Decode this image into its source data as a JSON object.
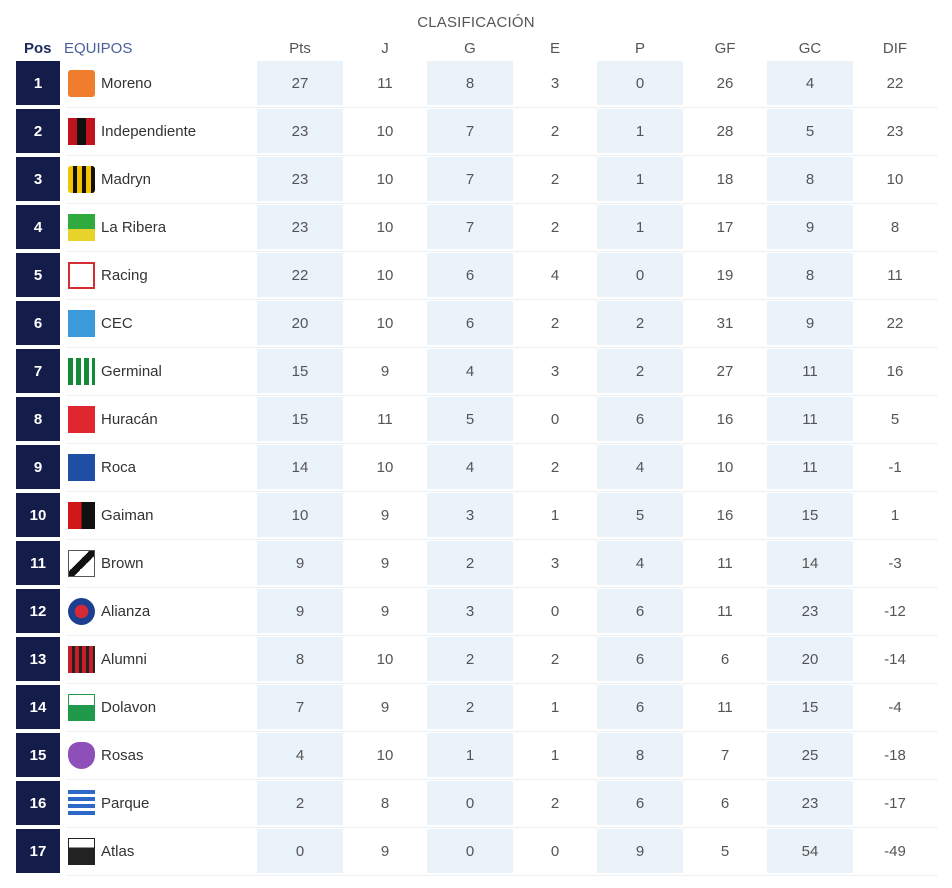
{
  "title": "CLASIFICACIÓN",
  "headers": {
    "pos": "Pos",
    "team": "EQUIPOS",
    "stats": [
      "Pts",
      "J",
      "G",
      "E",
      "P",
      "GF",
      "GC",
      "DIF"
    ]
  },
  "colors": {
    "pos_badge": "#141d4a",
    "shaded_column": "#eaf2fa",
    "header_team": "#4a5f9a"
  },
  "rows": [
    {
      "pos": "1",
      "team": "Moreno",
      "crest": "orange-j-crest-icon",
      "pts": "27",
      "j": "11",
      "g": "8",
      "e": "3",
      "p": "0",
      "gf": "26",
      "gc": "4",
      "dif": "22"
    },
    {
      "pos": "2",
      "team": "Independiente",
      "crest": "cai-crest-icon",
      "pts": "23",
      "j": "10",
      "g": "7",
      "e": "2",
      "p": "1",
      "gf": "28",
      "gc": "5",
      "dif": "23"
    },
    {
      "pos": "3",
      "team": "Madryn",
      "crest": "yellow-black-crest-icon",
      "pts": "23",
      "j": "10",
      "g": "7",
      "e": "2",
      "p": "1",
      "gf": "18",
      "gc": "8",
      "dif": "10"
    },
    {
      "pos": "4",
      "team": "La Ribera",
      "crest": "green-yellow-crest-icon",
      "pts": "23",
      "j": "10",
      "g": "7",
      "e": "2",
      "p": "1",
      "gf": "17",
      "gc": "9",
      "dif": "8"
    },
    {
      "pos": "5",
      "team": "Racing",
      "crest": "white-red-crest-icon",
      "pts": "22",
      "j": "10",
      "g": "6",
      "e": "4",
      "p": "0",
      "gf": "19",
      "gc": "8",
      "dif": "11"
    },
    {
      "pos": "6",
      "team": "CEC",
      "crest": "light-blue-cec-crest-icon",
      "pts": "20",
      "j": "10",
      "g": "6",
      "e": "2",
      "p": "2",
      "gf": "31",
      "gc": "9",
      "dif": "22"
    },
    {
      "pos": "7",
      "team": "Germinal",
      "crest": "green-stripes-crest-icon",
      "pts": "15",
      "j": "9",
      "g": "4",
      "e": "3",
      "p": "2",
      "gf": "27",
      "gc": "11",
      "dif": "16"
    },
    {
      "pos": "8",
      "team": "Huracán",
      "crest": "red-h-crest-icon",
      "pts": "15",
      "j": "11",
      "g": "5",
      "e": "0",
      "p": "6",
      "gf": "16",
      "gc": "11",
      "dif": "5"
    },
    {
      "pos": "9",
      "team": "Roca",
      "crest": "blue-m-crest-icon",
      "pts": "14",
      "j": "10",
      "g": "4",
      "e": "2",
      "p": "4",
      "gf": "10",
      "gc": "11",
      "dif": "-1"
    },
    {
      "pos": "10",
      "team": "Gaiman",
      "crest": "red-black-crest-icon",
      "pts": "10",
      "j": "9",
      "g": "3",
      "e": "1",
      "p": "5",
      "gf": "16",
      "gc": "15",
      "dif": "1"
    },
    {
      "pos": "11",
      "team": "Brown",
      "crest": "black-white-diagonal-crest-icon",
      "pts": "9",
      "j": "9",
      "g": "2",
      "e": "3",
      "p": "4",
      "gf": "11",
      "gc": "14",
      "dif": "-3"
    },
    {
      "pos": "12",
      "team": "Alianza",
      "crest": "blue-red-round-crest-icon",
      "pts": "9",
      "j": "9",
      "g": "3",
      "e": "0",
      "p": "6",
      "gf": "11",
      "gc": "23",
      "dif": "-12"
    },
    {
      "pos": "13",
      "team": "Alumni",
      "crest": "red-black-stripes-crest-icon",
      "pts": "8",
      "j": "10",
      "g": "2",
      "e": "2",
      "p": "6",
      "gf": "6",
      "gc": "20",
      "dif": "-14"
    },
    {
      "pos": "14",
      "team": "Dolavon",
      "crest": "green-white-crest-icon",
      "pts": "7",
      "j": "9",
      "g": "2",
      "e": "1",
      "p": "6",
      "gf": "11",
      "gc": "15",
      "dif": "-4"
    },
    {
      "pos": "15",
      "team": "Rosas",
      "crest": "purple-crest-icon",
      "pts": "4",
      "j": "10",
      "g": "1",
      "e": "1",
      "p": "8",
      "gf": "7",
      "gc": "25",
      "dif": "-18"
    },
    {
      "pos": "16",
      "team": "Parque",
      "crest": "blue-white-shield-crest-icon",
      "pts": "2",
      "j": "8",
      "g": "0",
      "e": "2",
      "p": "6",
      "gf": "6",
      "gc": "23",
      "dif": "-17"
    },
    {
      "pos": "17",
      "team": "Atlas",
      "crest": "black-white-atlas-crest-icon",
      "pts": "0",
      "j": "9",
      "g": "0",
      "e": "0",
      "p": "9",
      "gf": "5",
      "gc": "54",
      "dif": "-49"
    }
  ]
}
